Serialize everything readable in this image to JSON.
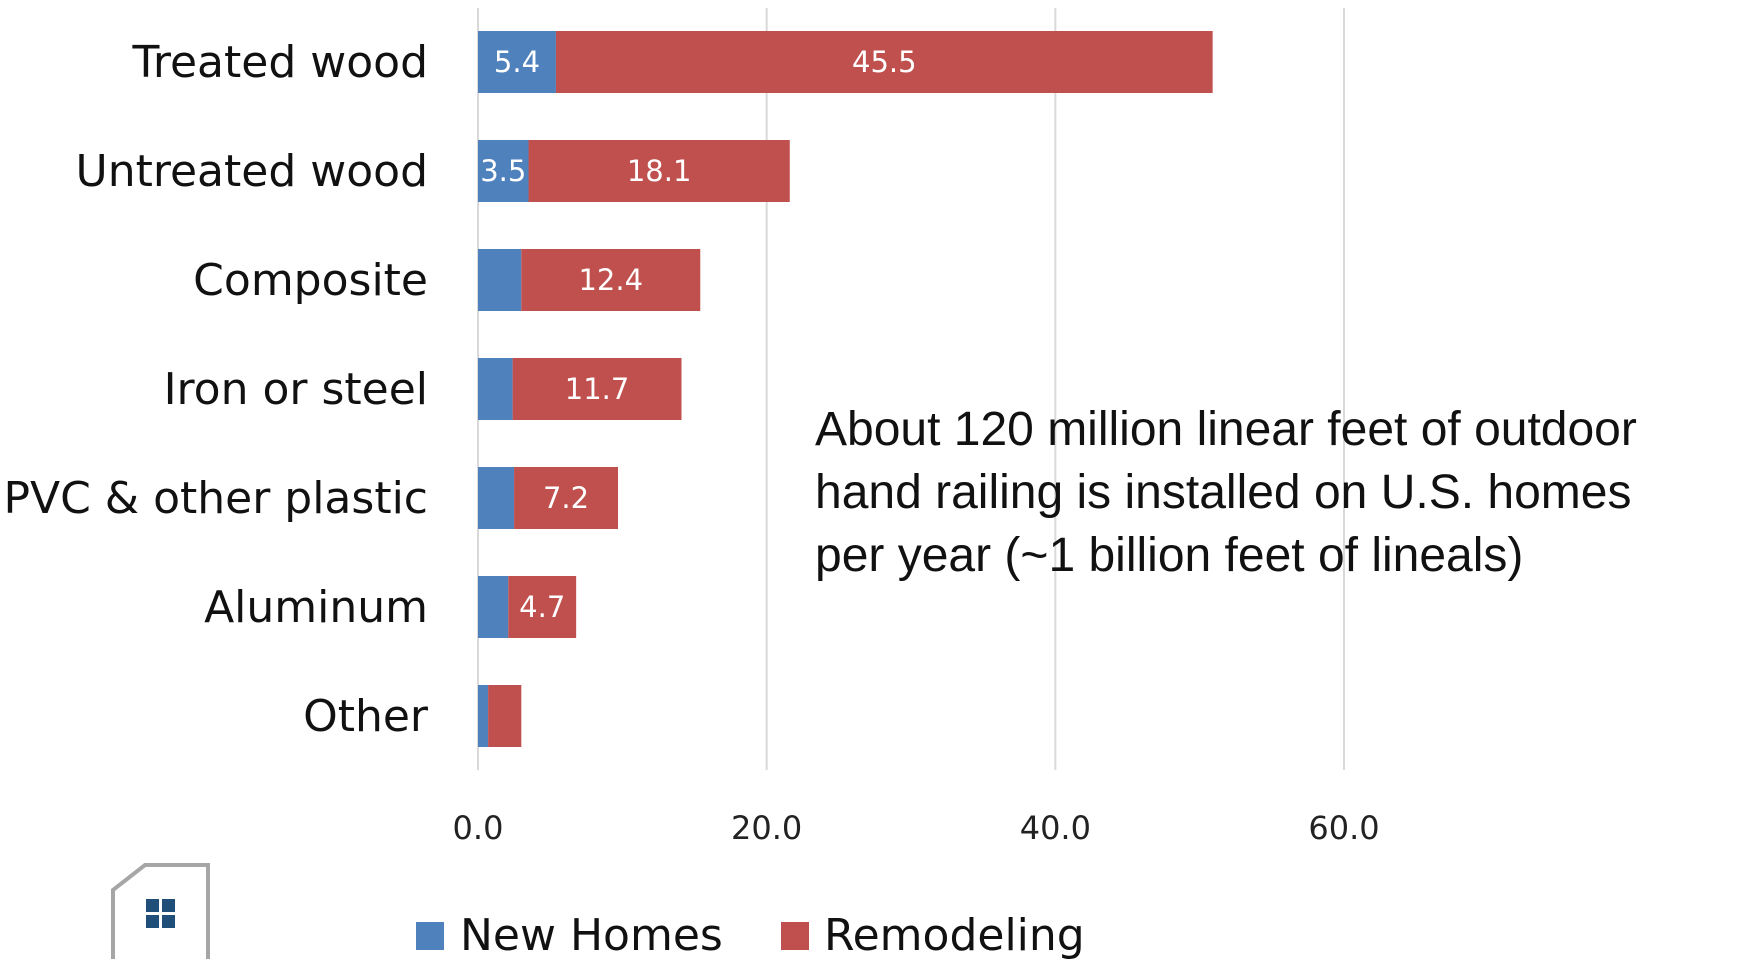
{
  "chart_data": {
    "type": "bar",
    "orientation": "horizontal",
    "stacked": true,
    "categories": [
      "Treated wood",
      "Untreated wood",
      "Composite",
      "Iron or steel",
      "PVC & other plastic",
      "Aluminum",
      "Other"
    ],
    "series": [
      {
        "name": "New Homes",
        "color": "#4f81bd",
        "values": [
          5.4,
          3.5,
          3.0,
          2.4,
          2.5,
          2.1,
          0.7
        ],
        "labels": [
          "5.4",
          "3.5",
          "",
          "",
          "",
          "",
          ""
        ]
      },
      {
        "name": "Remodeling",
        "color": "#c0504d",
        "values": [
          45.5,
          18.1,
          12.4,
          11.7,
          7.2,
          4.7,
          2.3
        ],
        "labels": [
          "45.5",
          "18.1",
          "12.4",
          "11.7",
          "7.2",
          "4.7",
          ""
        ]
      }
    ],
    "xlim": [
      0,
      78
    ],
    "xticks": [
      0,
      20,
      40,
      60
    ],
    "xtick_labels": [
      "0.0",
      "20.0",
      "40.0",
      "60.0"
    ],
    "grid": true,
    "legend_position": "bottom",
    "annotation": [
      "About 120 million linear feet of outdoor",
      "hand railing is installed on U.S. homes",
      "per year (~1 billion feet of lineals)"
    ],
    "gridline_color": "#d9d9d9"
  },
  "logo": {
    "name": "house-logo-icon"
  }
}
